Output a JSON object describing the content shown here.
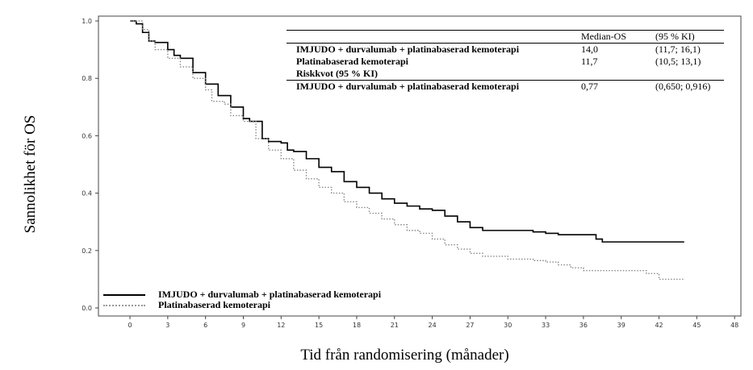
{
  "chart_data": {
    "type": "line",
    "title": "",
    "xlabel": "Tid från randomisering (månader)",
    "ylabel": "Sannolikhet för OS",
    "xlim": [
      -2.5,
      48.5
    ],
    "ylim": [
      0,
      1.0
    ],
    "x_ticks": [
      "0",
      "3",
      "6",
      "9",
      "12",
      "15",
      "18",
      "21",
      "24",
      "27",
      "30",
      "33",
      "36",
      "39",
      "42",
      "45",
      "48"
    ],
    "y_ticks": [
      "0.0",
      "0.2",
      "0.4",
      "0.6",
      "0.8",
      "1.0"
    ],
    "grid": false,
    "legend_placement": "bottom-left",
    "series": [
      {
        "name": "IMJUDO + durvalumab + platinabaserad kemoterapi",
        "style": "solid",
        "color": "#000000",
        "x": [
          0,
          0.5,
          1,
          1.5,
          2,
          3,
          3.5,
          4,
          5,
          6,
          7,
          8,
          9,
          9.5,
          10.5,
          11,
          12,
          12.5,
          13,
          14,
          15,
          16,
          17,
          18,
          19,
          20,
          21,
          22,
          23,
          24,
          25,
          26,
          27,
          28,
          30,
          32,
          33,
          34,
          36,
          37,
          37.5,
          44
        ],
        "y": [
          1.0,
          0.99,
          0.96,
          0.93,
          0.925,
          0.9,
          0.88,
          0.87,
          0.82,
          0.78,
          0.74,
          0.7,
          0.66,
          0.65,
          0.59,
          0.58,
          0.575,
          0.55,
          0.545,
          0.52,
          0.49,
          0.475,
          0.44,
          0.42,
          0.4,
          0.38,
          0.365,
          0.355,
          0.345,
          0.34,
          0.32,
          0.3,
          0.28,
          0.27,
          0.27,
          0.265,
          0.26,
          0.255,
          0.255,
          0.24,
          0.23,
          0.23
        ]
      },
      {
        "name": "Platinabaserad kemoterapi",
        "style": "dotted",
        "color": "#888888",
        "x": [
          0,
          1,
          1.5,
          2,
          3,
          4,
          5,
          6,
          6.5,
          7.5,
          8,
          9,
          10,
          11,
          12,
          13,
          14,
          15,
          16,
          17,
          18,
          19,
          20,
          21,
          22,
          23,
          24,
          25,
          26,
          27,
          28,
          30,
          32,
          33,
          34,
          35,
          36,
          38,
          41,
          42,
          44
        ],
        "y": [
          1.0,
          0.97,
          0.93,
          0.9,
          0.87,
          0.84,
          0.8,
          0.76,
          0.72,
          0.71,
          0.67,
          0.65,
          0.59,
          0.55,
          0.52,
          0.48,
          0.45,
          0.42,
          0.4,
          0.37,
          0.35,
          0.33,
          0.31,
          0.29,
          0.27,
          0.26,
          0.24,
          0.22,
          0.205,
          0.19,
          0.18,
          0.17,
          0.165,
          0.16,
          0.15,
          0.14,
          0.13,
          0.13,
          0.12,
          0.1,
          0.1
        ]
      }
    ],
    "annotation_table": {
      "header": [
        "",
        "Median-OS",
        "(95 % KI)"
      ],
      "rows": [
        [
          "IMJUDO + durvalumab + platinabaserad kemoterapi",
          "14,0",
          "(11,7; 16,1)"
        ],
        [
          "Platinabaserad kemoterapi",
          "11,7",
          "(10,5; 13,1)"
        ],
        [
          "Riskkvot (95 % KI)",
          "",
          ""
        ],
        [
          "IMJUDO + durvalumab + platinabaserad kemoterapi",
          "0,77",
          "(0,650; 0,916)"
        ]
      ]
    }
  }
}
